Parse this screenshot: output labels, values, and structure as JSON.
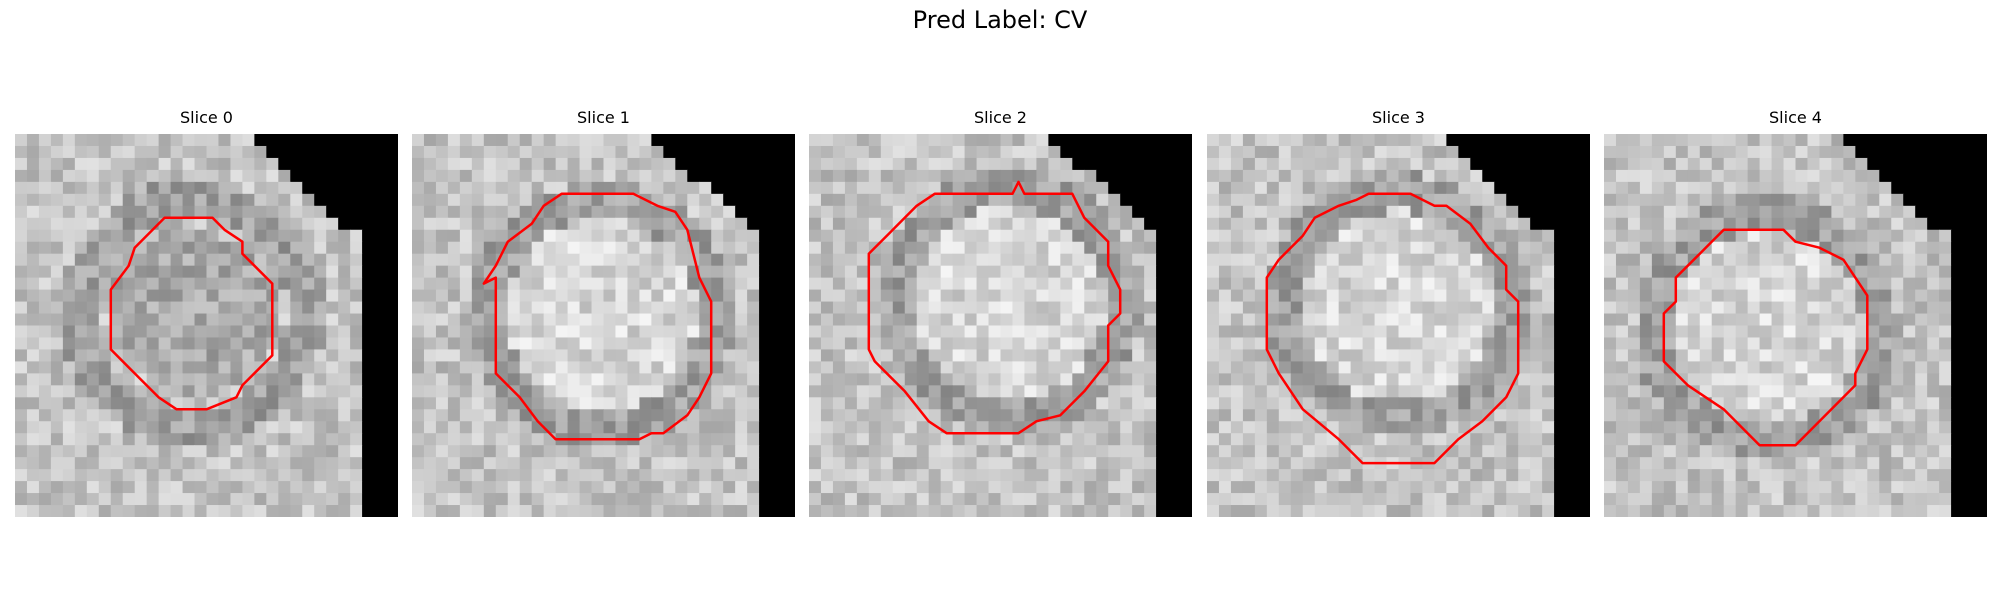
{
  "figure": {
    "title": "Pred Label: CV"
  },
  "panels": [
    {
      "title": "Slice 0",
      "contour_color": "#ff0000"
    },
    {
      "title": "Slice 1",
      "contour_color": "#ff0000"
    },
    {
      "title": "Slice 2",
      "contour_color": "#ff0000"
    },
    {
      "title": "Slice 3",
      "contour_color": "#ff0000"
    },
    {
      "title": "Slice 4",
      "contour_color": "#ff0000"
    }
  ],
  "colors": {
    "contour": "#ff0000",
    "background_mask": "#000000"
  }
}
